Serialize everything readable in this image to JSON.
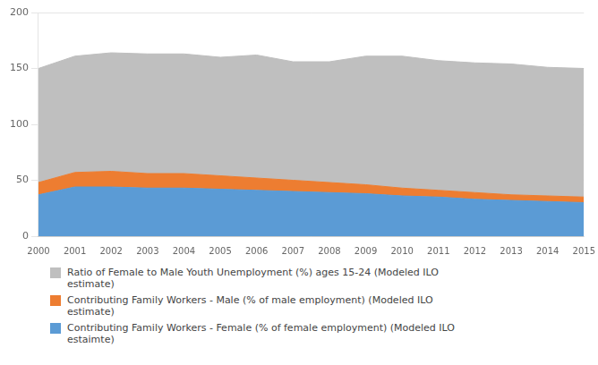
{
  "chart_data": {
    "type": "area",
    "stacked": true,
    "x": [
      2000,
      2001,
      2002,
      2003,
      2004,
      2005,
      2006,
      2007,
      2008,
      2009,
      2010,
      2011,
      2012,
      2013,
      2014,
      2015
    ],
    "xlim": [
      2000,
      2015
    ],
    "xticks": [
      2000,
      2001,
      2002,
      2003,
      2004,
      2005,
      2006,
      2007,
      2008,
      2009,
      2010,
      2011,
      2012,
      2013,
      2014,
      2015
    ],
    "ylim": [
      0,
      200
    ],
    "yticks": [
      0,
      50,
      100,
      150,
      200
    ],
    "grid": "y",
    "legend": "lower left",
    "series": [
      {
        "name": "Contributing Family Workers - Female (% of female employment) (Modeled ILO\nestaimte)",
        "color": "#5B9BD5",
        "values": [
          37,
          44,
          44,
          43,
          43,
          42,
          41,
          40,
          39,
          38,
          36,
          35,
          33,
          32,
          31,
          30
        ]
      },
      {
        "name": "Contributing Family Workers - Male (% of male employment) (Modeled ILO\nestimate)",
        "color": "#ED7D31",
        "values": [
          11,
          13,
          14,
          13,
          13,
          12,
          11,
          10,
          9,
          8,
          7,
          6,
          6,
          5,
          5,
          5
        ]
      },
      {
        "name": "Ratio of Female to Male Youth Unemployment (%) ages 15-24 (Modeled ILO\nestimate)",
        "color": "#BFBFBF",
        "values": [
          102,
          104,
          106,
          107,
          107,
          106,
          110,
          106,
          108,
          115,
          118,
          116,
          116,
          117,
          115,
          115
        ]
      }
    ]
  }
}
